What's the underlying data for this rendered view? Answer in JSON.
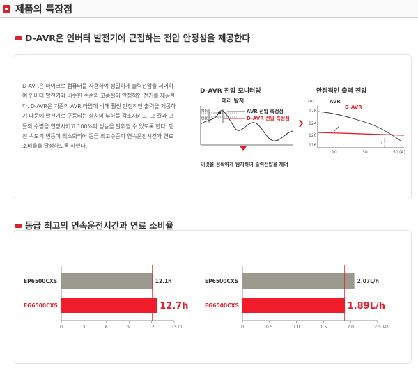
{
  "page": {
    "title": "제품의 특장점"
  },
  "section1": {
    "title": "D-AVR은 인버터 발전기에 근접하는 전압 안정성을 제공한다",
    "description": "D-AVR은 마이크로 컴퓨터를 사용하여 정밀하게 출력전압을 제어하여 인버터 발전기와 비슷한 수준의 고품질의 안정적인 전기를 제공한다. D-AVR은 기존의 AVR 타입에 비해 훨씬 안정적인 출력을 제공하기 때문에 발전기로 구동되는 장치의 부하를 감소시키고, 그 결과 그들의 수명을 연장시키고 100%의 성능을 발휘할 수 있도록 한다. 엔진 속도의 변동이 최소화되어 동급 최고수준의 연속운전시간과 연료소비율을 달성하도록 하였다.",
    "monitor": {
      "title": "D-AVR 전압 모니터링",
      "error_detect": "에러 탐지",
      "ng": "NG",
      "ok": "OK",
      "avr_measure": "AVR 전압 측정점",
      "davr_measure": "D-AVR 전압 측정점",
      "note": "이것을 정확하게 탐지하여 출력전압을 제어"
    },
    "stable": {
      "title": "안정적인 출력 전압",
      "avr_label": "AVR",
      "davr_label": "D-AVR",
      "y_ticks": [
        "128",
        "124",
        "120",
        "116"
      ],
      "x_ticks": [
        "10",
        "30",
        "50"
      ],
      "y_unit": "(V)",
      "x_unit": "(A)",
      "question": "?"
    }
  },
  "section2": {
    "title": "동급 최고의 연속운전시간과 연료 소비율"
  },
  "colors": {
    "accent": "#e4202a",
    "gray_bar": "#9a9a8e"
  },
  "chart_data": [
    {
      "type": "bar",
      "orientation": "horizontal",
      "categories": [
        "EP6500CXS",
        "EG6500CXS"
      ],
      "values": [
        12.1,
        12.7
      ],
      "value_labels": [
        "12.1h",
        "12.7h"
      ],
      "xlim": [
        0,
        15
      ],
      "x_ticks": [
        "0",
        "3",
        "6",
        "9",
        "12",
        "15"
      ],
      "x_unit": "(h)",
      "reference_line": 12.1,
      "colors": [
        "#9a9a8e",
        "#f01c2a"
      ]
    },
    {
      "type": "bar",
      "orientation": "horizontal",
      "categories": [
        "EP6500CXS",
        "EG6500CXS"
      ],
      "values": [
        2.07,
        1.89
      ],
      "value_labels": [
        "2.07L/h",
        "1.89L/h"
      ],
      "xlim": [
        0,
        2.5
      ],
      "x_ticks": [
        "0",
        "0.5",
        "1.0",
        "1.5",
        "2.0",
        "2.5"
      ],
      "x_unit": "(L/h)",
      "reference_line": 1.89,
      "colors": [
        "#9a9a8e",
        "#f01c2a"
      ]
    }
  ]
}
